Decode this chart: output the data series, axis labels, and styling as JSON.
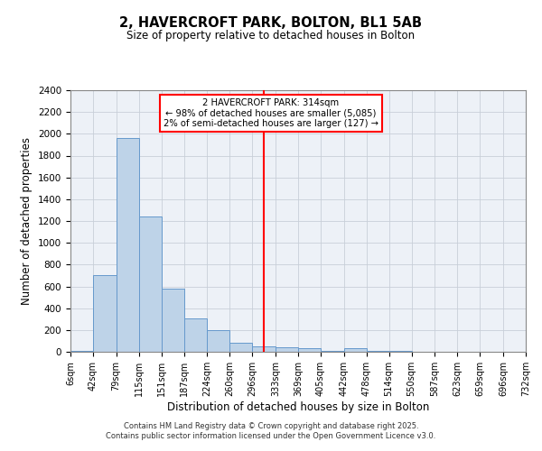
{
  "title": "2, HAVERCROFT PARK, BOLTON, BL1 5AB",
  "subtitle": "Size of property relative to detached houses in Bolton",
  "xlabel": "Distribution of detached houses by size in Bolton",
  "ylabel": "Number of detached properties",
  "bin_edges": [
    6,
    42,
    79,
    115,
    151,
    187,
    224,
    260,
    296,
    333,
    369,
    405,
    442,
    478,
    514,
    550,
    587,
    623,
    659,
    696,
    732
  ],
  "bin_labels": [
    "6sqm",
    "42sqm",
    "79sqm",
    "115sqm",
    "151sqm",
    "187sqm",
    "224sqm",
    "260sqm",
    "296sqm",
    "333sqm",
    "369sqm",
    "405sqm",
    "442sqm",
    "478sqm",
    "514sqm",
    "550sqm",
    "587sqm",
    "623sqm",
    "659sqm",
    "696sqm",
    "732sqm"
  ],
  "bar_heights": [
    10,
    700,
    1960,
    1240,
    580,
    305,
    200,
    80,
    50,
    40,
    30,
    5,
    35,
    5,
    5,
    0,
    0,
    0,
    0,
    0
  ],
  "bar_color": "#bed3e8",
  "bar_edge_color": "#6699cc",
  "grid_color": "#c8cfd8",
  "background_color": "#edf1f7",
  "red_line_x": 314,
  "ylim": [
    0,
    2400
  ],
  "yticks": [
    0,
    200,
    400,
    600,
    800,
    1000,
    1200,
    1400,
    1600,
    1800,
    2000,
    2200,
    2400
  ],
  "annotation_title": "2 HAVERCROFT PARK: 314sqm",
  "annotation_line1": "← 98% of detached houses are smaller (5,085)",
  "annotation_line2": "2% of semi-detached houses are larger (127) →",
  "footer_line1": "Contains HM Land Registry data © Crown copyright and database right 2025.",
  "footer_line2": "Contains public sector information licensed under the Open Government Licence v3.0."
}
